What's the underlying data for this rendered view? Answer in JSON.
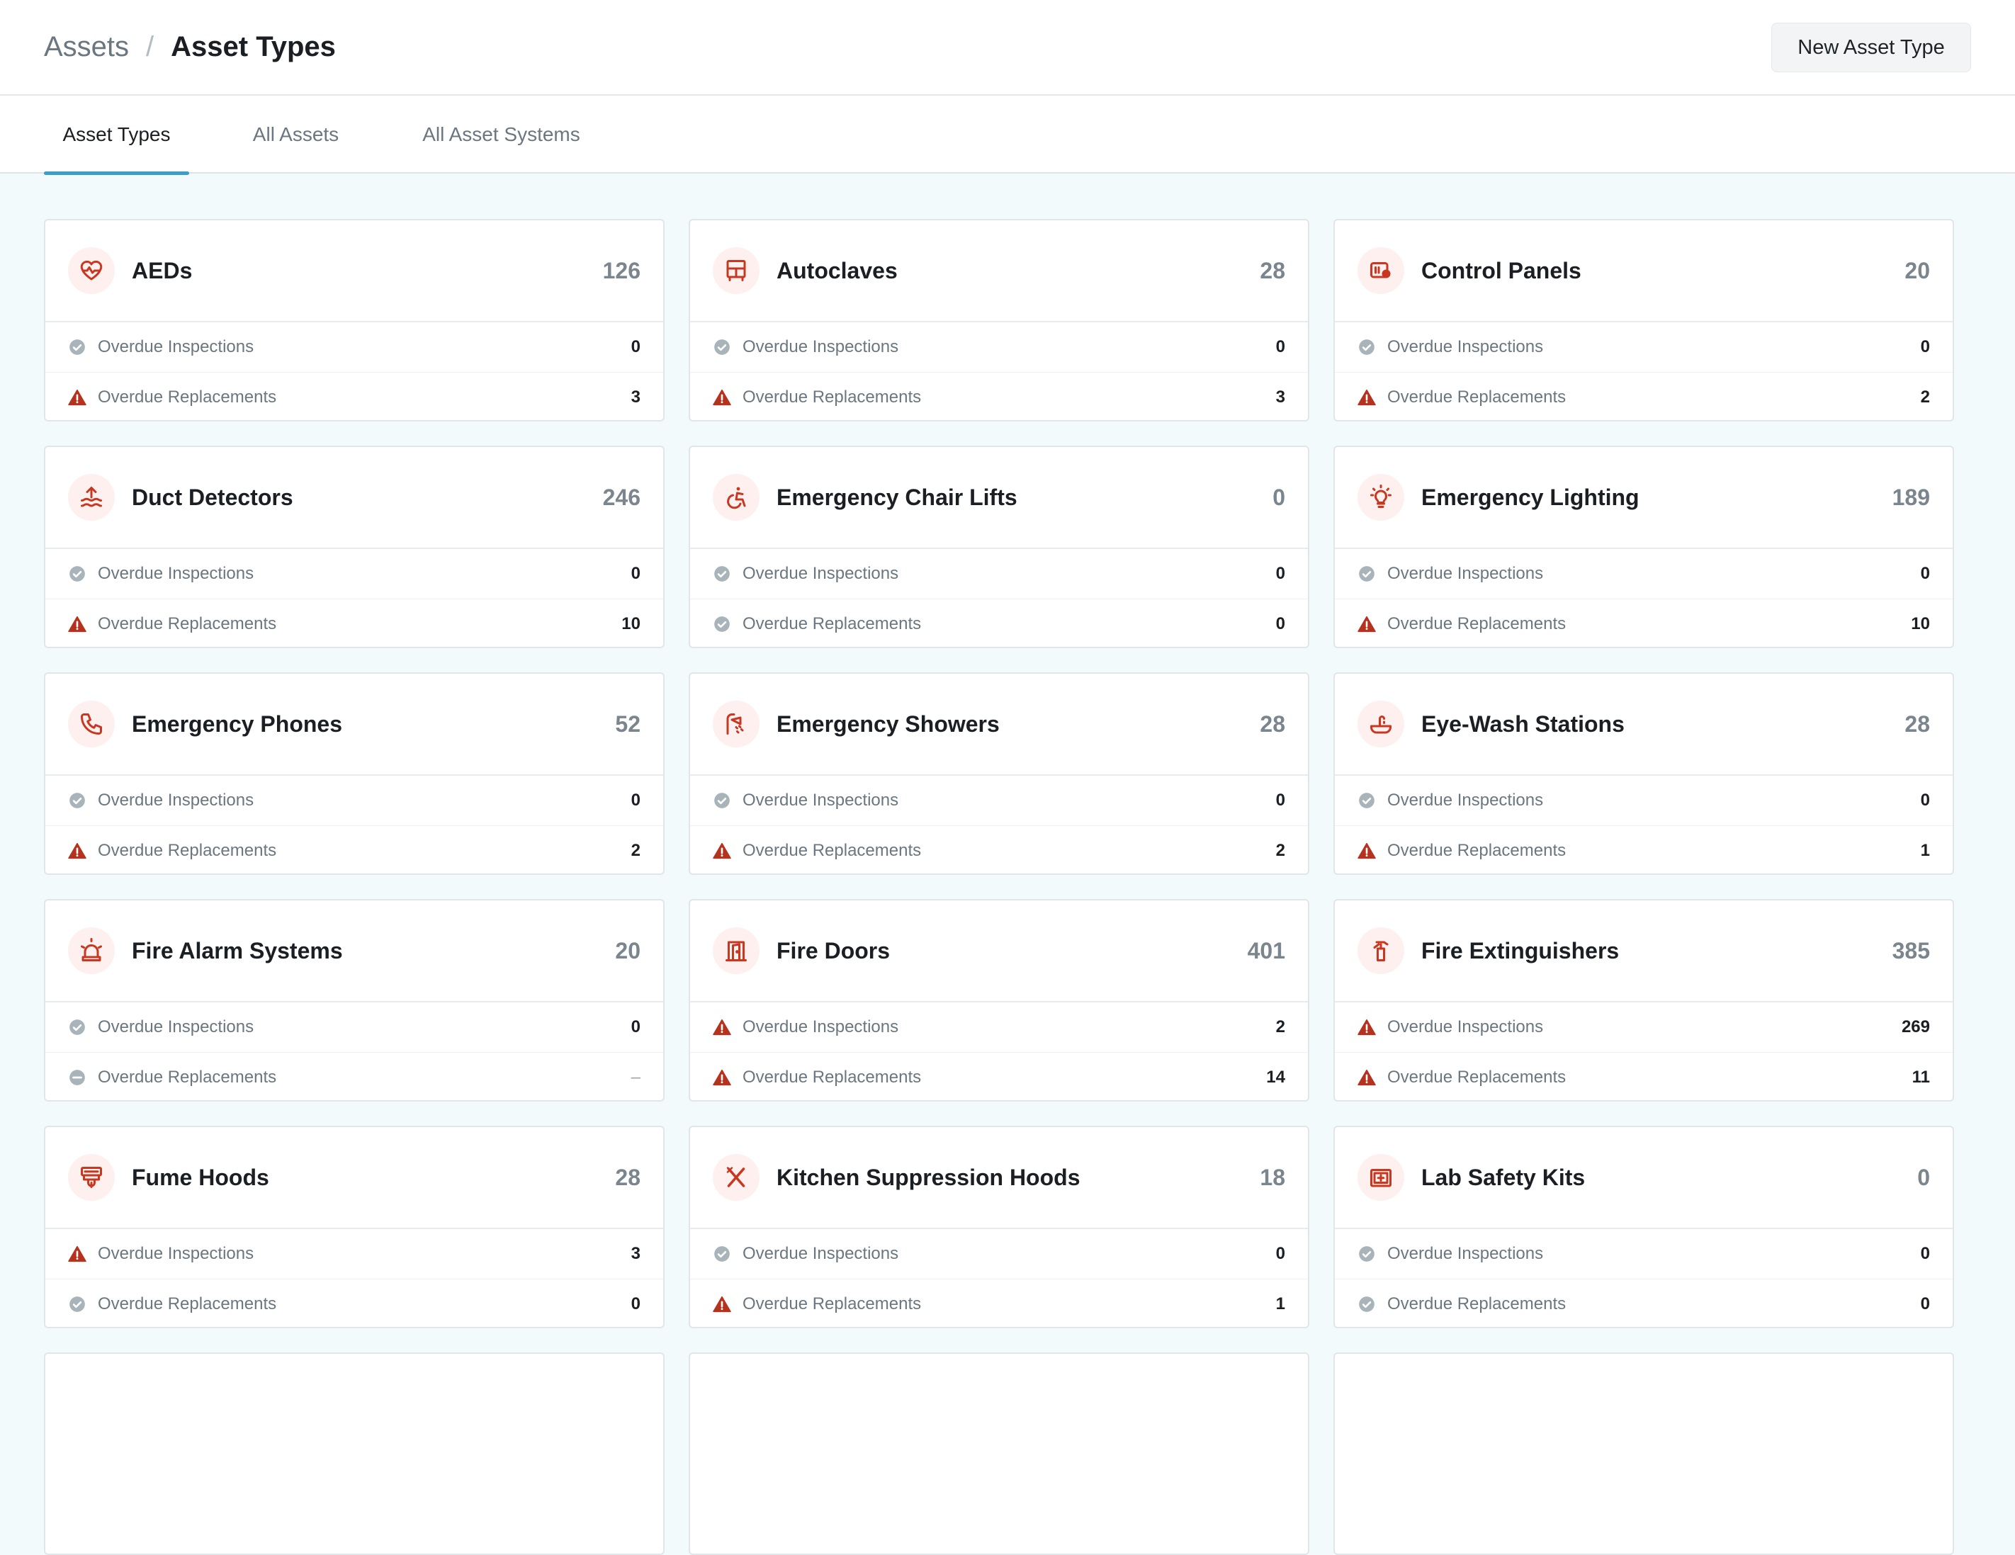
{
  "breadcrumb": {
    "root": "Assets",
    "separator": "/",
    "current": "Asset Types"
  },
  "header": {
    "new_button": "New Asset Type"
  },
  "tabs": [
    {
      "label": "Asset Types",
      "active": true
    },
    {
      "label": "All Assets",
      "active": false
    },
    {
      "label": "All Asset Systems",
      "active": false
    }
  ],
  "colors": {
    "accent": "#3a9fc2",
    "icon": "#c8371f",
    "warning": "#b5321f",
    "ok": "#a9b3ba"
  },
  "cards": [
    {
      "title": "AEDs",
      "count": "126",
      "icon": "heart-pulse-icon",
      "inspections": {
        "label": "Overdue Inspections",
        "value": "0",
        "status": "ok"
      },
      "replacements": {
        "label": "Overdue Replacements",
        "value": "3",
        "status": "warning"
      }
    },
    {
      "title": "Autoclaves",
      "count": "28",
      "icon": "autoclave-icon",
      "inspections": {
        "label": "Overdue Inspections",
        "value": "0",
        "status": "ok"
      },
      "replacements": {
        "label": "Overdue Replacements",
        "value": "3",
        "status": "warning"
      }
    },
    {
      "title": "Control Panels",
      "count": "20",
      "icon": "control-panel-icon",
      "inspections": {
        "label": "Overdue Inspections",
        "value": "0",
        "status": "ok"
      },
      "replacements": {
        "label": "Overdue Replacements",
        "value": "2",
        "status": "warning"
      }
    },
    {
      "title": "Duct Detectors",
      "count": "246",
      "icon": "duct-detector-icon",
      "inspections": {
        "label": "Overdue Inspections",
        "value": "0",
        "status": "ok"
      },
      "replacements": {
        "label": "Overdue Replacements",
        "value": "10",
        "status": "warning"
      }
    },
    {
      "title": "Emergency Chair Lifts",
      "count": "0",
      "icon": "accessibility-icon",
      "inspections": {
        "label": "Overdue Inspections",
        "value": "0",
        "status": "ok"
      },
      "replacements": {
        "label": "Overdue Replacements",
        "value": "0",
        "status": "ok"
      }
    },
    {
      "title": "Emergency Lighting",
      "count": "189",
      "icon": "lightbulb-icon",
      "inspections": {
        "label": "Overdue Inspections",
        "value": "0",
        "status": "ok"
      },
      "replacements": {
        "label": "Overdue Replacements",
        "value": "10",
        "status": "warning"
      }
    },
    {
      "title": "Emergency Phones",
      "count": "52",
      "icon": "phone-icon",
      "inspections": {
        "label": "Overdue Inspections",
        "value": "0",
        "status": "ok"
      },
      "replacements": {
        "label": "Overdue Replacements",
        "value": "2",
        "status": "warning"
      }
    },
    {
      "title": "Emergency Showers",
      "count": "28",
      "icon": "shower-icon",
      "inspections": {
        "label": "Overdue Inspections",
        "value": "0",
        "status": "ok"
      },
      "replacements": {
        "label": "Overdue Replacements",
        "value": "2",
        "status": "warning"
      }
    },
    {
      "title": "Eye-Wash Stations",
      "count": "28",
      "icon": "eye-wash-icon",
      "inspections": {
        "label": "Overdue Inspections",
        "value": "0",
        "status": "ok"
      },
      "replacements": {
        "label": "Overdue Replacements",
        "value": "1",
        "status": "warning"
      }
    },
    {
      "title": "Fire Alarm Systems",
      "count": "20",
      "icon": "alarm-siren-icon",
      "inspections": {
        "label": "Overdue Inspections",
        "value": "0",
        "status": "ok"
      },
      "replacements": {
        "label": "Overdue Replacements",
        "value": "–",
        "status": "none"
      }
    },
    {
      "title": "Fire Doors",
      "count": "401",
      "icon": "door-icon",
      "inspections": {
        "label": "Overdue Inspections",
        "value": "2",
        "status": "warning"
      },
      "replacements": {
        "label": "Overdue Replacements",
        "value": "14",
        "status": "warning"
      }
    },
    {
      "title": "Fire Extinguishers",
      "count": "385",
      "icon": "fire-extinguisher-icon",
      "inspections": {
        "label": "Overdue Inspections",
        "value": "269",
        "status": "warning"
      },
      "replacements": {
        "label": "Overdue Replacements",
        "value": "11",
        "status": "warning"
      }
    },
    {
      "title": "Fume Hoods",
      "count": "28",
      "icon": "fume-hood-icon",
      "inspections": {
        "label": "Overdue Inspections",
        "value": "3",
        "status": "warning"
      },
      "replacements": {
        "label": "Overdue Replacements",
        "value": "0",
        "status": "ok"
      }
    },
    {
      "title": "Kitchen Suppression Hoods",
      "count": "18",
      "icon": "utensils-icon",
      "inspections": {
        "label": "Overdue Inspections",
        "value": "0",
        "status": "ok"
      },
      "replacements": {
        "label": "Overdue Replacements",
        "value": "1",
        "status": "warning"
      }
    },
    {
      "title": "Lab Safety Kits",
      "count": "0",
      "icon": "first-aid-kit-icon",
      "inspections": {
        "label": "Overdue Inspections",
        "value": "0",
        "status": "ok"
      },
      "replacements": {
        "label": "Overdue Replacements",
        "value": "0",
        "status": "ok"
      }
    }
  ]
}
